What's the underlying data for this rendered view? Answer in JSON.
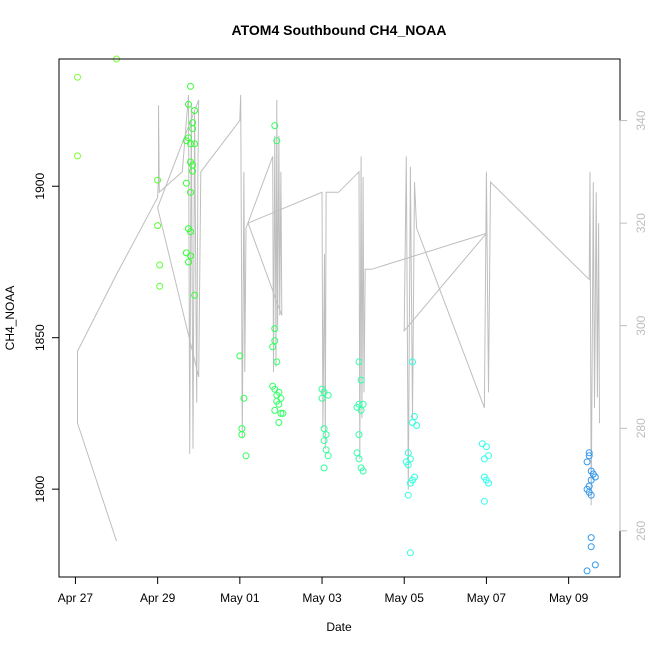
{
  "chart_data": {
    "type": "scatter",
    "title": "ATOM4 Southbound CH4_NOAA",
    "xlabel": "Date",
    "ylabel": "CH4_NOAA",
    "x_ticks": [
      "Apr 27",
      "Apr 29",
      "May 01",
      "May 03",
      "May 05",
      "May 07",
      "May 09"
    ],
    "x_tick_values": [
      0,
      2,
      4,
      6,
      8,
      10,
      12
    ],
    "xlim": [
      -0.4,
      13.25
    ],
    "ylim": [
      1771,
      1942
    ],
    "y_ticks": [
      1800,
      1850,
      1900
    ],
    "y2_ticks": [
      260,
      280,
      300,
      320,
      340
    ],
    "y2lim": [
      251,
      352
    ],
    "grid": false,
    "series": [
      {
        "kind": "points",
        "points": [
          [
            0.05,
            1936,
            "#7cff33"
          ],
          [
            0.05,
            1910,
            "#7cff33"
          ],
          [
            1.0,
            1942,
            "#7cff33"
          ],
          [
            2.0,
            1902,
            "#5cff33"
          ],
          [
            2.0,
            1887,
            "#5cff33"
          ],
          [
            2.05,
            1874,
            "#5cff33"
          ],
          [
            2.05,
            1867,
            "#5cff33"
          ],
          [
            2.8,
            1933,
            "#33ff33"
          ],
          [
            2.75,
            1927,
            "#33ff33"
          ],
          [
            2.9,
            1925,
            "#33ff33"
          ],
          [
            2.85,
            1921,
            "#33ff33"
          ],
          [
            2.85,
            1919,
            "#33ff33"
          ],
          [
            2.75,
            1916,
            "#33ff33"
          ],
          [
            2.7,
            1915,
            "#33ff33"
          ],
          [
            2.8,
            1914,
            "#33ff33"
          ],
          [
            2.9,
            1914,
            "#33ff33"
          ],
          [
            2.8,
            1908,
            "#33ff33"
          ],
          [
            2.85,
            1907,
            "#33ff33"
          ],
          [
            2.85,
            1905,
            "#33ff33"
          ],
          [
            2.7,
            1901,
            "#33ff33"
          ],
          [
            2.8,
            1898,
            "#33ff33"
          ],
          [
            2.75,
            1886,
            "#33ff33"
          ],
          [
            2.8,
            1885,
            "#33ff33"
          ],
          [
            2.7,
            1878,
            "#33ff33"
          ],
          [
            2.8,
            1877,
            "#33ff33"
          ],
          [
            2.75,
            1875,
            "#33ff33"
          ],
          [
            2.9,
            1864,
            "#33ff33"
          ],
          [
            4.0,
            1844,
            "#33ff55"
          ],
          [
            4.1,
            1830,
            "#33ff55"
          ],
          [
            4.05,
            1820,
            "#33ff55"
          ],
          [
            4.05,
            1818,
            "#33ff55"
          ],
          [
            4.15,
            1811,
            "#33ff55"
          ],
          [
            4.85,
            1920,
            "#33ff66"
          ],
          [
            4.9,
            1915,
            "#33ff66"
          ],
          [
            4.85,
            1853,
            "#33ff66"
          ],
          [
            4.85,
            1849,
            "#33ff66"
          ],
          [
            4.8,
            1847,
            "#33ff66"
          ],
          [
            4.9,
            1842,
            "#33ff66"
          ],
          [
            4.8,
            1834,
            "#33ff66"
          ],
          [
            4.85,
            1833,
            "#33ff66"
          ],
          [
            4.95,
            1832,
            "#33ff66"
          ],
          [
            4.9,
            1831,
            "#33ff66"
          ],
          [
            5.0,
            1830,
            "#33ff66"
          ],
          [
            4.9,
            1829,
            "#33ff66"
          ],
          [
            4.95,
            1828,
            "#33ff66"
          ],
          [
            4.85,
            1826,
            "#33ff66"
          ],
          [
            5.0,
            1825,
            "#33ff66"
          ],
          [
            5.05,
            1825,
            "#33ff66"
          ],
          [
            4.95,
            1822,
            "#33ff66"
          ],
          [
            6.0,
            1833,
            "#33ff99"
          ],
          [
            6.05,
            1832,
            "#33ff99"
          ],
          [
            6.0,
            1830,
            "#33ff99"
          ],
          [
            6.15,
            1831,
            "#33ff99"
          ],
          [
            6.05,
            1820,
            "#33ff99"
          ],
          [
            6.1,
            1818,
            "#33ff99"
          ],
          [
            6.05,
            1816,
            "#33ff99"
          ],
          [
            6.1,
            1813,
            "#33ff99"
          ],
          [
            6.15,
            1811,
            "#33ff99"
          ],
          [
            6.05,
            1807,
            "#33ff99"
          ],
          [
            6.9,
            1842,
            "#33ffaa"
          ],
          [
            6.95,
            1836,
            "#33ffaa"
          ],
          [
            6.9,
            1828,
            "#33ffaa"
          ],
          [
            6.85,
            1827,
            "#33ffaa"
          ],
          [
            7.0,
            1828,
            "#33ffaa"
          ],
          [
            6.95,
            1826,
            "#33ffaa"
          ],
          [
            6.9,
            1818,
            "#33ffaa"
          ],
          [
            6.85,
            1812,
            "#33ffaa"
          ],
          [
            6.9,
            1810,
            "#33ffaa"
          ],
          [
            6.95,
            1807,
            "#33ffaa"
          ],
          [
            7.0,
            1806,
            "#33ffaa"
          ],
          [
            8.2,
            1842,
            "#33ffdd"
          ],
          [
            8.25,
            1824,
            "#33ffdd"
          ],
          [
            8.2,
            1822,
            "#33ffdd"
          ],
          [
            8.3,
            1821,
            "#33ffdd"
          ],
          [
            8.1,
            1812,
            "#33ffdd"
          ],
          [
            8.15,
            1810,
            "#33ffdd"
          ],
          [
            8.05,
            1809,
            "#33ffdd"
          ],
          [
            8.1,
            1808,
            "#33ffdd"
          ],
          [
            8.25,
            1804,
            "#33ffdd"
          ],
          [
            8.2,
            1803,
            "#33ffdd"
          ],
          [
            8.15,
            1802,
            "#33ffdd"
          ],
          [
            8.1,
            1798,
            "#33ffdd"
          ],
          [
            8.15,
            1779,
            "#33ffdd"
          ],
          [
            9.9,
            1815,
            "#33ffee"
          ],
          [
            10.0,
            1814,
            "#33ffee"
          ],
          [
            9.95,
            1810,
            "#33ffee"
          ],
          [
            10.05,
            1811,
            "#33ffee"
          ],
          [
            9.95,
            1804,
            "#33ffee"
          ],
          [
            10.0,
            1803,
            "#33ffee"
          ],
          [
            10.05,
            1802,
            "#33ffee"
          ],
          [
            9.95,
            1796,
            "#33ffee"
          ],
          [
            12.5,
            1812,
            "#3399ee"
          ],
          [
            12.5,
            1811,
            "#3399ee"
          ],
          [
            12.45,
            1809,
            "#3399ee"
          ],
          [
            12.55,
            1806,
            "#3399ee"
          ],
          [
            12.6,
            1805,
            "#3399ee"
          ],
          [
            12.65,
            1804,
            "#3399ee"
          ],
          [
            12.55,
            1803,
            "#3399ee"
          ],
          [
            12.5,
            1801,
            "#3399ee"
          ],
          [
            12.45,
            1800,
            "#3399ee"
          ],
          [
            12.5,
            1799,
            "#3399ee"
          ],
          [
            12.55,
            1798,
            "#3399ee"
          ],
          [
            12.55,
            1784,
            "#3399ee"
          ],
          [
            12.55,
            1781,
            "#3399ee"
          ],
          [
            12.65,
            1775,
            "#3399ee"
          ],
          [
            12.45,
            1773,
            "#3399ee"
          ]
        ]
      },
      {
        "kind": "line",
        "color": "#bebebe",
        "axis": "right",
        "points": [
          [
            1.0,
            258
          ],
          [
            0.05,
            281
          ],
          [
            0.05,
            295
          ],
          [
            1.0,
            310
          ],
          [
            2.0,
            325
          ],
          [
            2.02,
            329
          ],
          [
            2.02,
            343
          ],
          [
            2.04,
            326
          ],
          [
            2.6,
            330
          ],
          [
            2.75,
            345
          ],
          [
            2.78,
            275
          ],
          [
            2.82,
            343
          ],
          [
            2.86,
            276
          ],
          [
            2.9,
            342
          ],
          [
            2.95,
            285
          ],
          [
            2.98,
            330
          ],
          [
            3.0,
            344
          ],
          [
            2.0,
            323
          ],
          [
            3.0,
            290
          ],
          [
            3.05,
            330
          ],
          [
            4.0,
            340
          ],
          [
            4.02,
            345
          ],
          [
            4.06,
            278
          ],
          [
            4.1,
            330
          ],
          [
            4.12,
            291
          ],
          [
            4.15,
            319
          ],
          [
            4.8,
            333
          ],
          [
            4.82,
            291
          ],
          [
            4.85,
            337
          ],
          [
            4.88,
            292
          ],
          [
            4.9,
            344
          ],
          [
            4.92,
            300
          ],
          [
            4.95,
            337
          ],
          [
            4.97,
            302
          ],
          [
            5.0,
            330
          ],
          [
            5.02,
            302
          ],
          [
            4.2,
            320
          ],
          [
            6.0,
            326
          ],
          [
            6.02,
            280
          ],
          [
            6.06,
            314
          ],
          [
            6.08,
            276
          ],
          [
            6.1,
            326
          ],
          [
            6.4,
            326
          ],
          [
            6.9,
            330
          ],
          [
            6.92,
            274
          ],
          [
            6.95,
            333
          ],
          [
            6.97,
            282
          ],
          [
            7.0,
            329
          ],
          [
            7.02,
            287
          ],
          [
            7.05,
            311
          ],
          [
            7.2,
            311
          ],
          [
            10.0,
            318
          ],
          [
            8.0,
            299
          ],
          [
            8.05,
            333
          ],
          [
            8.1,
            268
          ],
          [
            8.15,
            331
          ],
          [
            8.2,
            282
          ],
          [
            8.25,
            328
          ],
          [
            8.3,
            319
          ],
          [
            9.95,
            284
          ],
          [
            10.0,
            330
          ],
          [
            10.05,
            287
          ],
          [
            10.1,
            328
          ],
          [
            12.5,
            309
          ],
          [
            12.52,
            330
          ],
          [
            12.55,
            265
          ],
          [
            12.6,
            328
          ],
          [
            12.63,
            284
          ],
          [
            12.67,
            326
          ],
          [
            12.7,
            286
          ],
          [
            12.73,
            320
          ],
          [
            12.75,
            281
          ]
        ]
      }
    ]
  }
}
